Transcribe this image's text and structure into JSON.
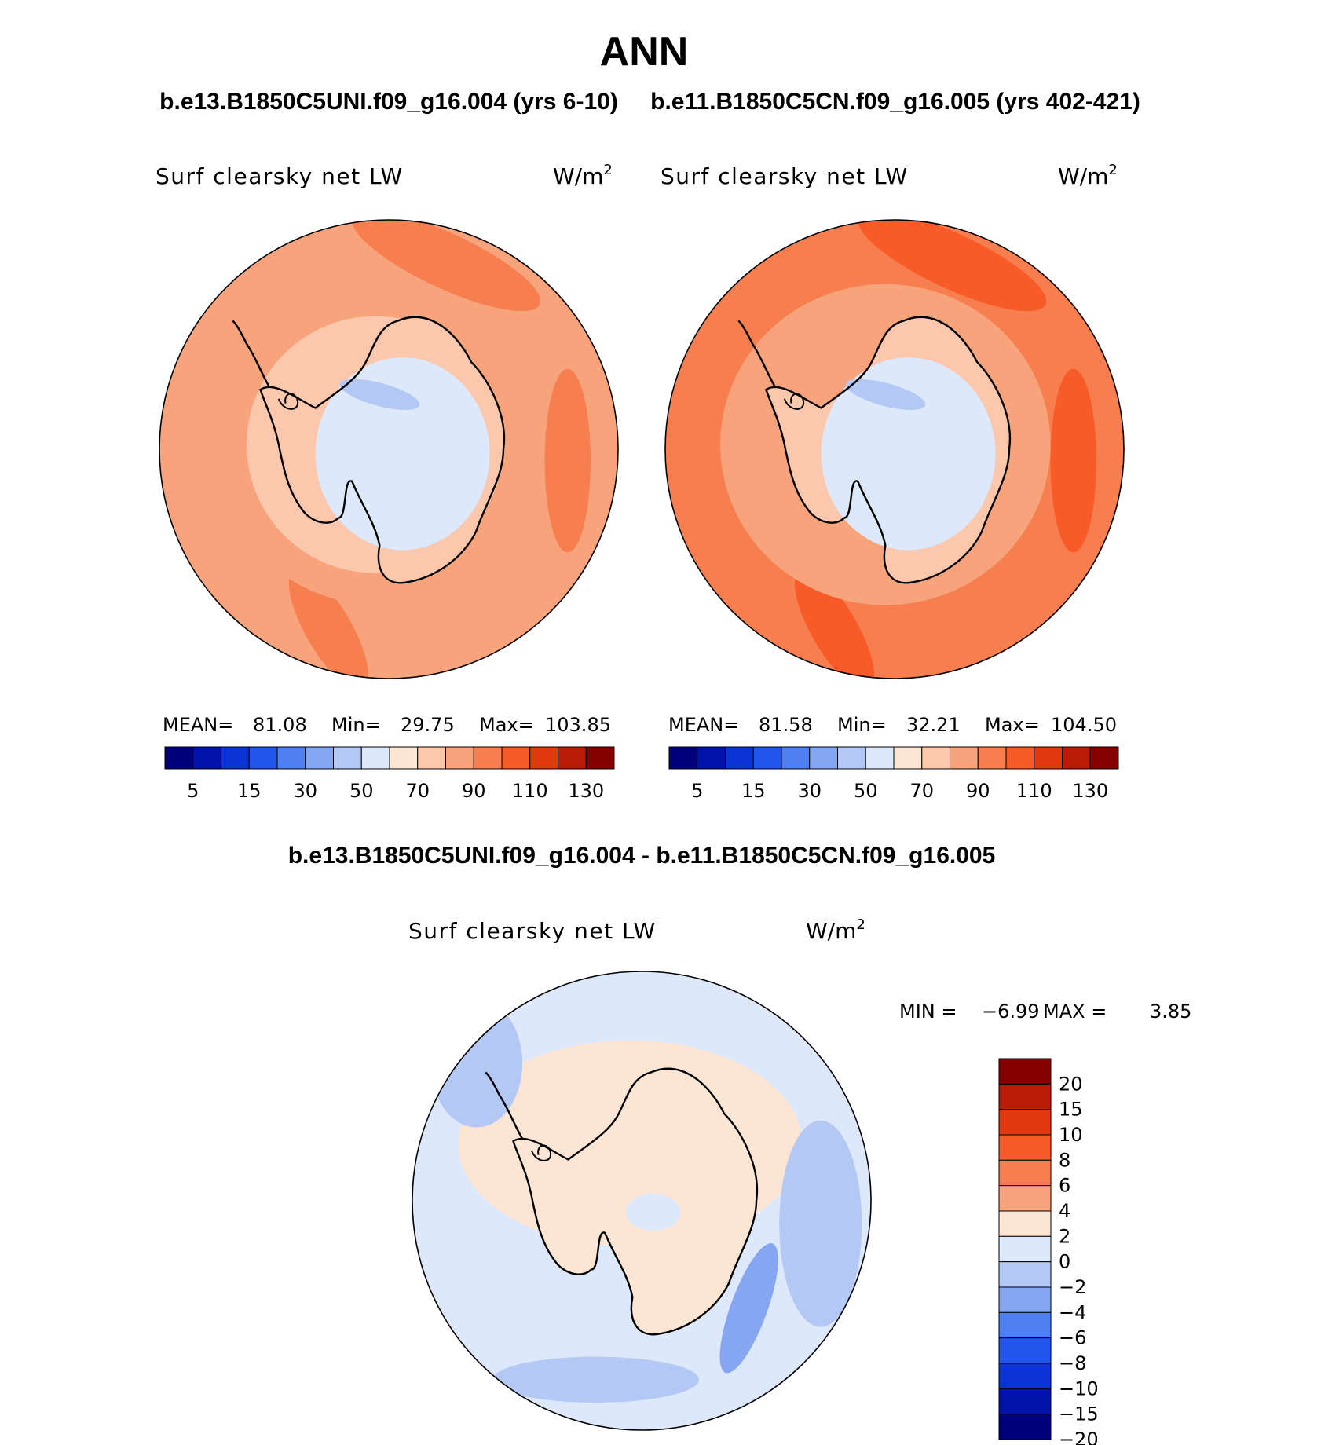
{
  "chart_data": {
    "type": "heatmap",
    "title": "ANN",
    "panels": [
      {
        "id": "case",
        "title": "b.e13.B1850C5UNI.f09_g16.004 (yrs 6-10)",
        "variable": "Surf clearsky net LW",
        "units": "W/m",
        "units_sup": "2",
        "stats": {
          "mean_label": "MEAN=",
          "mean": "81.08",
          "min_label": "Min=",
          "min": "29.75",
          "max_label": "Max=",
          "max": "103.85"
        },
        "zones": {
          "ocean_outer": 88,
          "ocean_mid": 80,
          "coast": 72,
          "interior": 58,
          "band_hi": 98
        }
      },
      {
        "id": "control",
        "title": "b.e11.B1850C5CN.f09_g16.005 (yrs 402-421)",
        "variable": "Surf clearsky net LW",
        "units": "W/m",
        "units_sup": "2",
        "stats": {
          "mean_label": "MEAN=",
          "mean": "81.58",
          "min_label": "Min=",
          "min": "32.21",
          "max_label": "Max=",
          "max": "104.50"
        },
        "zones": {
          "ocean_outer": 90,
          "ocean_mid": 82,
          "coast": 74,
          "interior": 58,
          "band_hi": 100
        }
      },
      {
        "id": "diff",
        "title": "b.e13.B1850C5UNI.f09_g16.004 - b.e11.B1850C5CN.f09_g16.005",
        "variable": "Surf clearsky net LW",
        "units": "W/m",
        "units_sup": "2",
        "stats": {
          "min_label": "MIN =",
          "min": "−6.99",
          "max_label": "MAX =",
          "max": "3.85"
        }
      }
    ],
    "abs_colorbar": {
      "ticks": [
        "5",
        "15",
        "30",
        "50",
        "70",
        "90",
        "110",
        "130"
      ],
      "colors": [
        "#00007a",
        "#0012a8",
        "#0a34d6",
        "#2155ec",
        "#4f7ff0",
        "#86a6f2",
        "#b4c8f6",
        "#dde8fa",
        "#fde5d4",
        "#fbc8ad",
        "#f7a37c",
        "#f77e4e",
        "#f85a28",
        "#e0380f",
        "#b81c08",
        "#870000"
      ]
    },
    "diff_colorbar": {
      "ticks": [
        "20",
        "15",
        "10",
        "8",
        "6",
        "4",
        "2",
        "0",
        "−2",
        "−4",
        "−6",
        "−8",
        "−10",
        "−15",
        "−20"
      ],
      "colors": [
        "#870000",
        "#b81c08",
        "#e0380f",
        "#f85a28",
        "#f77e4e",
        "#f7a37c",
        "#fde5d4",
        "#dde8fa",
        "#b4c8f6",
        "#86a6f2",
        "#4f7ff0",
        "#2155ec",
        "#0a34d6",
        "#0012a8",
        "#00007a"
      ]
    }
  }
}
